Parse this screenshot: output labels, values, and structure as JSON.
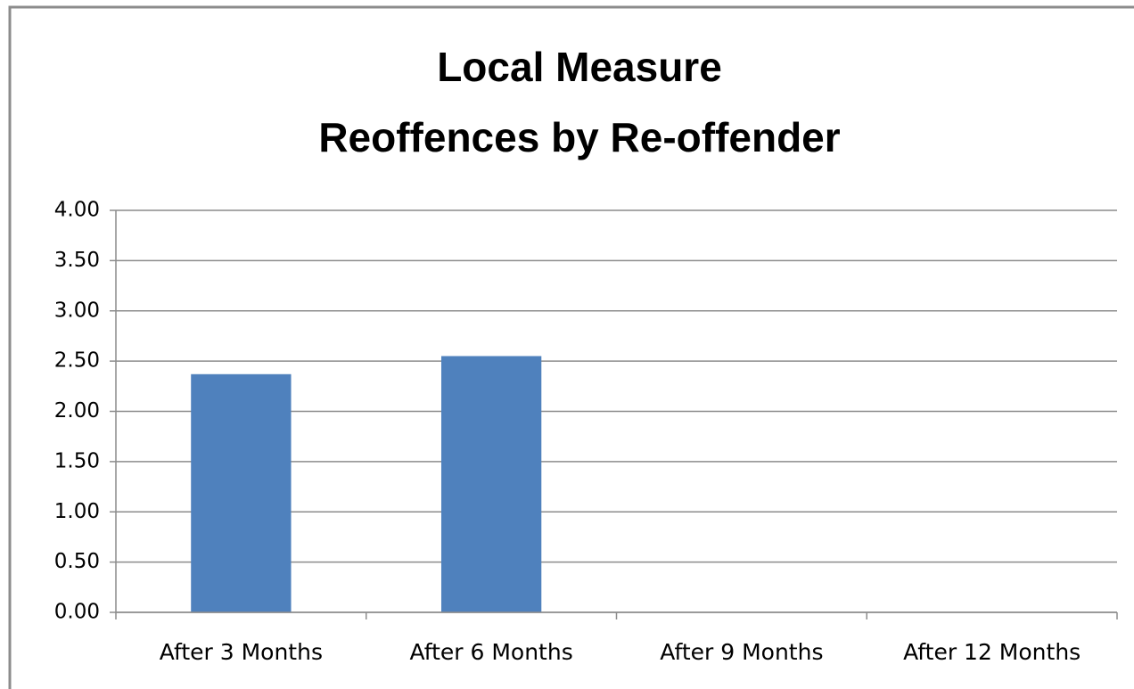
{
  "chart_data": {
    "type": "bar",
    "title": [
      "Local Measure",
      "Reoffences by Re-offender"
    ],
    "categories": [
      "After 3 Months",
      "After 6 Months",
      "After 9 Months",
      "After 12 Months"
    ],
    "values": [
      2.37,
      2.55,
      null,
      null
    ],
    "color": "#4f81bd",
    "ylim": [
      0,
      4
    ],
    "yticks": [
      {
        "value": 0,
        "label": "0.00"
      },
      {
        "value": 0.5,
        "label": "0.50"
      },
      {
        "value": 1,
        "label": "1.00"
      },
      {
        "value": 1.5,
        "label": "1.50"
      },
      {
        "value": 2,
        "label": "2.00"
      },
      {
        "value": 2.5,
        "label": "2.50"
      },
      {
        "value": 3,
        "label": "3.00"
      },
      {
        "value": 3.5,
        "label": "3.50"
      },
      {
        "value": 4,
        "label": "4.00"
      }
    ],
    "grid": true
  }
}
